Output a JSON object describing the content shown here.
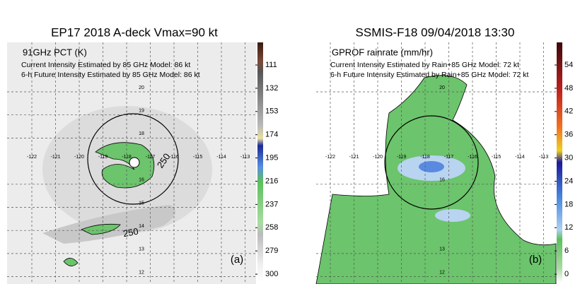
{
  "panels": [
    {
      "title": "EP17 2018 A-deck Vmax=90 kt",
      "product": "91GHz PCT (K)",
      "lines": [
        "Current Intensity Estimated by 85 GHz Model: 86 kt",
        "6-h Future Intensity Estimated by 85 GHz Model: 86 kt"
      ],
      "lon_labels": [
        -122,
        -121,
        -120,
        -119,
        -118,
        -117,
        -116,
        -115,
        -114,
        -113
      ],
      "lat_labels": [
        20,
        19,
        18,
        16,
        15,
        14,
        13,
        12
      ],
      "contour_labels": [
        "250",
        "250"
      ],
      "colorbar_ticks": [
        111,
        132,
        153,
        174,
        195,
        216,
        237,
        258,
        279,
        300
      ],
      "panel_label": "(a)"
    },
    {
      "title": "SSMIS-F18 09/04/2018 13:30",
      "product": "GPROF rainrate (mm/hr)",
      "lines": [
        "Current Intensity Estimated by Rain+85 GHz Model: 72 kt",
        "6-h Future Intensity Estimated by Rain+85 GHz Model: 72 kt"
      ],
      "lon_labels": [
        -122,
        -121,
        -120,
        -119,
        -118,
        -117,
        -116,
        -115,
        -114,
        -113
      ],
      "lat_labels": [
        20,
        16,
        13,
        12
      ],
      "colorbar_ticks": [
        54,
        48,
        42,
        36,
        30,
        24,
        18,
        12,
        6,
        0
      ],
      "panel_label": "(b)"
    }
  ]
}
